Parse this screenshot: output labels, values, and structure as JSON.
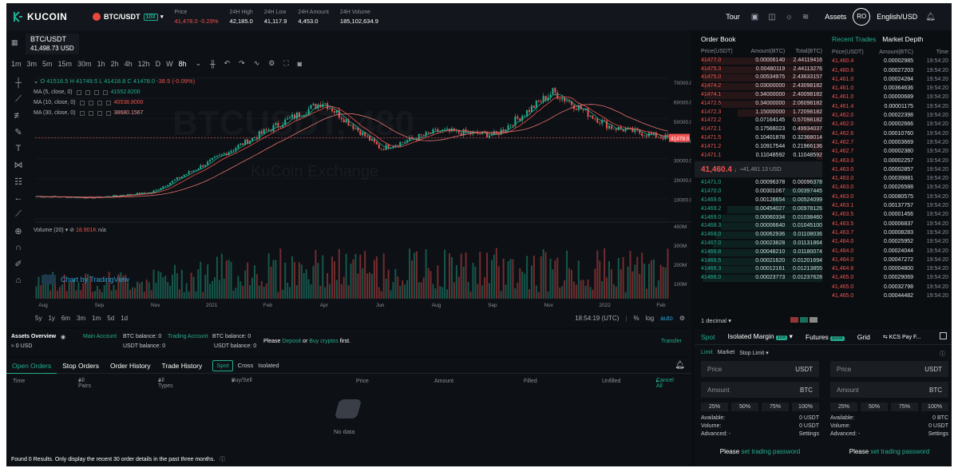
{
  "header": {
    "logo": "KUCOIN",
    "pair": "BTC/USDT",
    "leverage": "10X",
    "stats": [
      {
        "label": "Price",
        "value": "41,478.0",
        "change": "-0.29%"
      },
      {
        "label": "24H High",
        "value": "42,185.0"
      },
      {
        "label": "24H Low",
        "value": "41,117.9"
      },
      {
        "label": "24H Amount",
        "value": "4,453.0"
      },
      {
        "label": "24H Volume",
        "value": "185,102,634.9"
      }
    ],
    "tour": "Tour",
    "assets": "Assets",
    "avatar": "RO",
    "locale": "English/USD"
  },
  "chart": {
    "symbol": "BTC/USDT",
    "symbol_price": "41,498.73 USD",
    "intervals": [
      "1m",
      "3m",
      "5m",
      "15m",
      "30m",
      "1h",
      "2h",
      "4h",
      "12h",
      "D",
      "W",
      "8h"
    ],
    "active_interval": "8h",
    "ohlc": {
      "o": "O 41516.5",
      "h": "H 41749.5",
      "l": "L 41418.8",
      "c": "C 41478.0",
      "chg": "-38.5 (-0.09%)"
    },
    "ma": [
      {
        "label": "MA (5, close, 0)",
        "value": "41552.8200"
      },
      {
        "label": "MA (10, close, 0)",
        "value": "40538.8000"
      },
      {
        "label": "MA (30, close, 0)",
        "value": "38680.1567"
      }
    ],
    "volume_label": "Volume (20)",
    "volume_value": "18.901K",
    "volume_na": "n/a",
    "watermark": "BTCUSDT, 480",
    "watermark2": "KuCoin Exchange",
    "tv_brand": "Chart by TradingView",
    "price_tag": "41478.0",
    "price_axis": [
      "70000.0",
      "60000.0",
      "50000.0",
      "40000.0",
      "30000.0",
      "20000.0",
      "10000.0"
    ],
    "vol_axis": [
      "400M",
      "300M",
      "200M",
      "100M"
    ],
    "x_axis": [
      "Aug",
      "Sep",
      "Nov",
      "2021",
      "Feb",
      "Apr",
      "Jun",
      "Aug",
      "Sep",
      "Nov",
      "2022",
      "Feb"
    ],
    "ranges": [
      "5y",
      "1y",
      "6m",
      "3m",
      "1m",
      "5d",
      "1d"
    ],
    "time": "18:54:19 (UTC)",
    "foot": [
      "%",
      "log",
      "auto"
    ]
  },
  "chart_data": {
    "type": "candlestick",
    "title": "",
    "ylabel": "",
    "xlabel": "",
    "ylim": [
      0,
      72000
    ],
    "x": [
      "Aug",
      "Sep",
      "Nov",
      "2021",
      "Feb",
      "Apr",
      "Jun",
      "Aug",
      "Sep",
      "Nov",
      "2022",
      "Feb"
    ],
    "series": [
      {
        "name": "",
        "values": [
          11500,
          10800,
          13500,
          29000,
          45000,
          60000,
          36000,
          45000,
          43000,
          65000,
          47000,
          41478
        ]
      }
    ]
  },
  "orderbook": {
    "title": "Order Book",
    "headers": [
      "Price(USDT)",
      "Amount(BTC)",
      "Total(BTC)"
    ],
    "asks": [
      [
        "41477.0",
        "0.00006140",
        "2.44119416"
      ],
      [
        "41475.3",
        "0.00480119",
        "2.44113276"
      ],
      [
        "41475.0",
        "0.00534975",
        "2.43633157"
      ],
      [
        "41474.2",
        "0.03000000",
        "2.43098182"
      ],
      [
        "41474.1",
        "0.34000000",
        "2.40098182"
      ],
      [
        "41472.5",
        "0.34000000",
        "2.06098182"
      ],
      [
        "41472.3",
        "1.15000000",
        "1.72098182"
      ],
      [
        "41472.2",
        "0.07164145",
        "0.57098182"
      ],
      [
        "41472.1",
        "0.17566023",
        "0.49934037"
      ],
      [
        "41471.5",
        "0.10401878",
        "0.32368014"
      ],
      [
        "41471.2",
        "0.10917544",
        "0.21966136"
      ],
      [
        "41471.1",
        "0.11048592",
        "0.11048592"
      ]
    ],
    "mid_price": "41,460.4",
    "mid_usd": "≈41,481.13 USD",
    "bids": [
      [
        "41471.0",
        "0.00096378",
        "0.00096378"
      ],
      [
        "41470.0",
        "0.00301067",
        "0.00397445"
      ],
      [
        "41469.6",
        "0.00126654",
        "0.00524099"
      ],
      [
        "41469.2",
        "0.00454027",
        "0.00978126"
      ],
      [
        "41469.0",
        "0.00060334",
        "0.01038460"
      ],
      [
        "41468.3",
        "0.00006640",
        "0.01045100"
      ],
      [
        "41468.0",
        "0.00062936",
        "0.01108036"
      ],
      [
        "41467.0",
        "0.00023828",
        "0.01131864"
      ],
      [
        "41466.8",
        "0.00048210",
        "0.01180074"
      ],
      [
        "41466.5",
        "0.00021620",
        "0.01201694"
      ],
      [
        "41466.3",
        "0.00012161",
        "0.01213855"
      ],
      [
        "41466.0",
        "0.00023773",
        "0.01237628"
      ]
    ],
    "decimal": "1 decimal"
  },
  "recent_trades": {
    "tabs": [
      "Recent Trades",
      "Market Depth"
    ],
    "headers": [
      "Price(USDT)",
      "Amount(BTC)",
      "Time"
    ],
    "rows": [
      [
        "41,460.4",
        "0.00002985",
        "19:54:20"
      ],
      [
        "41,460.6",
        "0.00027203",
        "19:54:20"
      ],
      [
        "41,461.0",
        "0.00024284",
        "19:54:20"
      ],
      [
        "41,461.0",
        "0.00364636",
        "19:54:20"
      ],
      [
        "41,461.0",
        "0.00000689",
        "19:54:20"
      ],
      [
        "41,461.4",
        "0.00001175",
        "19:54:20"
      ],
      [
        "41,462.0",
        "0.00022398",
        "19:54:20"
      ],
      [
        "41,462.0",
        "0.00002666",
        "19:54:20"
      ],
      [
        "41,462.6",
        "0.00010760",
        "19:54:20"
      ],
      [
        "41,462.7",
        "0.00003669",
        "19:54:20"
      ],
      [
        "41,462.7",
        "0.00002380",
        "19:54:20"
      ],
      [
        "41,463.0",
        "0.00002257",
        "19:54:20"
      ],
      [
        "41,463.0",
        "0.00002857",
        "19:54:20"
      ],
      [
        "41,463.0",
        "0.00039881",
        "19:54:20"
      ],
      [
        "41,463.0",
        "0.00026588",
        "19:54:20"
      ],
      [
        "41,463.0",
        "0.00080575",
        "19:54:20"
      ],
      [
        "41,463.1",
        "0.00137757",
        "19:54:20"
      ],
      [
        "41,463.5",
        "0.00001456",
        "19:54:20"
      ],
      [
        "41,463.5",
        "0.00006837",
        "19:54:20"
      ],
      [
        "41,463.7",
        "0.00008283",
        "19:54:20"
      ],
      [
        "41,464.0",
        "0.00025952",
        "19:54:20"
      ],
      [
        "41,464.0",
        "0.00024044",
        "19:54:20"
      ],
      [
        "41,464.0",
        "0.00047272",
        "19:54:20"
      ],
      [
        "41,464.8",
        "0.00004800",
        "19:54:20"
      ],
      [
        "41,465.0",
        "0.00029069",
        "19:54:20"
      ],
      [
        "41,465.0",
        "0.00032798",
        "19:54:20"
      ],
      [
        "41,465.0",
        "0.00044482",
        "19:54:20"
      ]
    ]
  },
  "assets": {
    "overview": "Assets Overview",
    "overview_value": "≈ 0 USD",
    "main": "Main Account",
    "main_btc": "BTC balance: 0",
    "main_usdt": "USDT balance: 0",
    "trading": "Trading Account",
    "trading_btc": "BTC balance: 0",
    "trading_usdt": "USDT balance: 0",
    "please": "Please",
    "deposit": "Deposit",
    "or": "or",
    "buy": "Buy cryptos",
    "first": "first.",
    "transfer": "Transfer"
  },
  "orders": {
    "tabs": [
      "Open Orders",
      "Stop Orders",
      "Order History",
      "Trade History"
    ],
    "filters": [
      "Spot",
      "Cross",
      "Isolated"
    ],
    "columns": [
      "Time",
      "All Pairs",
      "All Types",
      "Buy/Sell",
      "Price",
      "Amount",
      "Filled",
      "Unfilled",
      "Cancel All"
    ],
    "nodata": "No data",
    "footer": "Found 0 Results. Only display the recent 30 order details in the past three months."
  },
  "trade": {
    "tabs": [
      "Spot",
      "Isolated Margin",
      "Futures",
      "Grid",
      "KCS Pay F..."
    ],
    "margin_badge": "10X",
    "futures_badge": "100X",
    "types": [
      "Limit",
      "Market",
      "Stop Limit"
    ],
    "price": "Price",
    "amount": "Amount",
    "usdt": "USDT",
    "btc": "BTC",
    "pcts": [
      "25%",
      "50%",
      "75%",
      "100%"
    ],
    "available": "Available:",
    "volume": "Volume:",
    "advanced": "Advanced: -",
    "settings": "Settings",
    "buy_available": "0 USDT",
    "buy_volume": "0 USDT",
    "sell_available": "0 BTC",
    "sell_volume": "0 USDT",
    "set_pw_prefix": "Please",
    "set_pw": "set trading password"
  }
}
